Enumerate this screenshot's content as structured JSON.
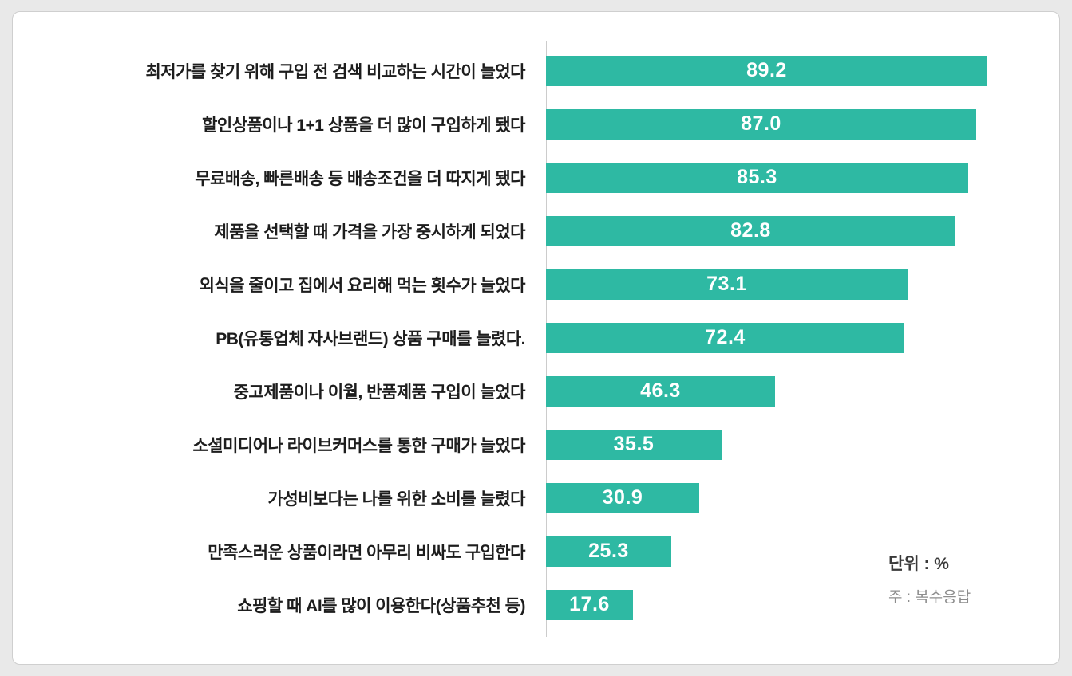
{
  "chart_data": {
    "type": "bar",
    "orientation": "horizontal",
    "title": "",
    "categories": [
      "최저가를 찾기 위해 구입 전 검색 비교하는 시간이 늘었다",
      "할인상품이나 1+1 상품을 더 많이 구입하게 됐다",
      "무료배송, 빠른배송 등 배송조건을 더 따지게 됐다",
      "제품을 선택할 때 가격을 가장 중시하게 되었다",
      "외식을 줄이고 집에서 요리해 먹는 횟수가 늘었다",
      "PB(유통업체 자사브랜드) 상품 구매를 늘렸다.",
      "중고제품이나 이월, 반품제품 구입이 늘었다",
      "소셜미디어나 라이브커머스를 통한 구매가 늘었다",
      "가성비보다는 나를 위한 소비를 늘렸다",
      "만족스러운 상품이라면 아무리 비싸도 구입한다",
      "쇼핑할 때 AI를 많이 이용한다(상품추천 등)"
    ],
    "values": [
      89.2,
      87.0,
      85.3,
      82.8,
      73.1,
      72.4,
      46.3,
      35.5,
      30.9,
      25.3,
      17.6
    ],
    "value_labels": [
      "89.2",
      "87.0",
      "85.3",
      "82.8",
      "73.1",
      "72.4",
      "46.3",
      "35.5",
      "30.9",
      "25.3",
      "17.6"
    ],
    "xlim": [
      0,
      100
    ],
    "grid": false,
    "legend": "none",
    "bar_color": "#2eb9a3",
    "value_text_color": "#ffffff",
    "annotations": {
      "unit": "단위 : %",
      "note": "주 : 복수응답"
    }
  }
}
